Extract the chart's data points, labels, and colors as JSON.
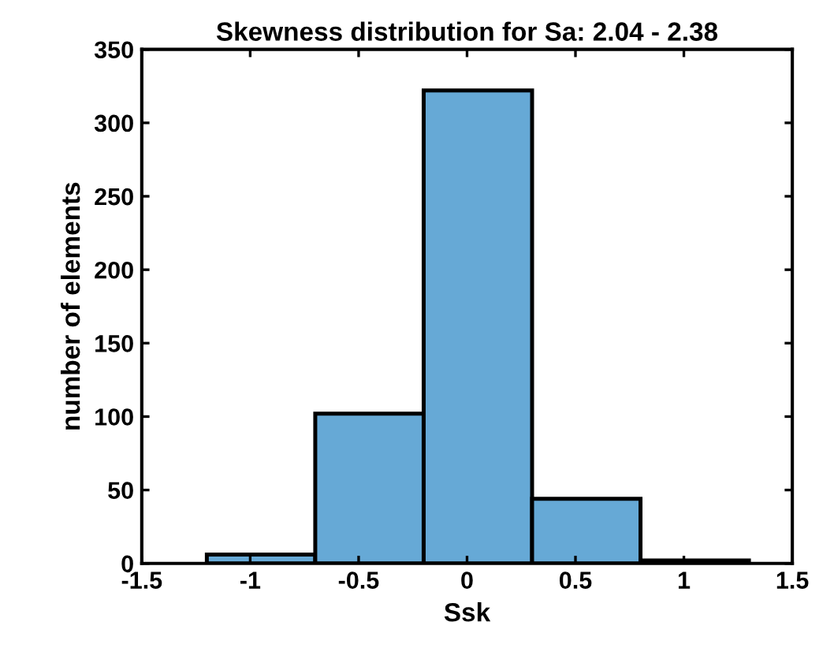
{
  "chart_data": {
    "type": "histogram",
    "title": "Skewness distribution for Sa: 2.04 - 2.38",
    "xlabel": "Ssk",
    "ylabel": "number of elements",
    "bins": [
      -1.2,
      -0.7,
      -0.2,
      0.3,
      0.8,
      1.3
    ],
    "values": [
      6,
      102,
      322,
      44,
      2
    ],
    "color": "#66a9d6",
    "xlim": [
      -1.5,
      1.5
    ],
    "xticks": [
      -1.5,
      -1,
      -0.5,
      0,
      0.5,
      1,
      1.5
    ],
    "ylim": [
      0,
      350
    ],
    "yticks": [
      0,
      50,
      100,
      150,
      200,
      250,
      300,
      350
    ],
    "grid": false
  }
}
